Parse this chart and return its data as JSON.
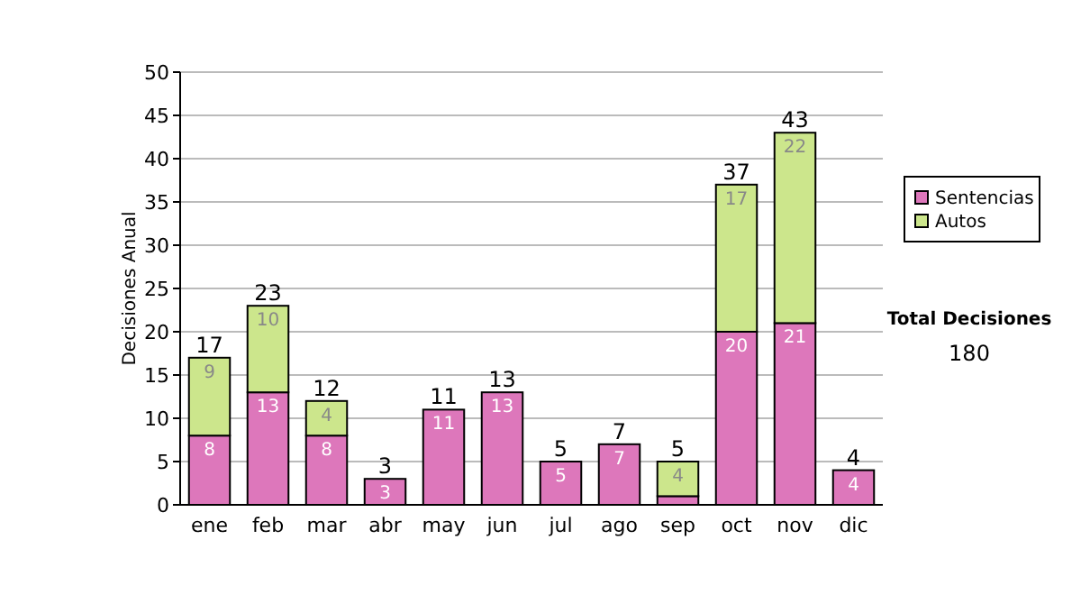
{
  "chart_data": {
    "type": "bar",
    "stacked": true,
    "ylabel": "Decisiones Anual",
    "categories": [
      "ene",
      "feb",
      "mar",
      "abr",
      "may",
      "jun",
      "jul",
      "ago",
      "sep",
      "oct",
      "nov",
      "dic"
    ],
    "series": [
      {
        "name": "Sentencias",
        "color": "#dd77bb",
        "values": [
          8,
          13,
          8,
          3,
          11,
          13,
          5,
          7,
          1,
          20,
          21,
          4
        ],
        "value_labels": [
          "8",
          "13",
          "8",
          "3",
          "11",
          "13",
          "5",
          "7",
          null,
          "20",
          "21",
          "4"
        ]
      },
      {
        "name": "Autos",
        "color": "#cce68c",
        "values": [
          9,
          10,
          4,
          0,
          0,
          0,
          0,
          0,
          4,
          17,
          22,
          0
        ],
        "value_labels": [
          "9",
          "10",
          "4",
          null,
          null,
          null,
          null,
          null,
          "4",
          "17",
          "22",
          null
        ]
      }
    ],
    "totals": [
      "17",
      "23",
      "12",
      "3",
      "11",
      "13",
      "5",
      "7",
      "5",
      "37",
      "43",
      "4"
    ],
    "ylim": [
      0,
      50
    ],
    "yticks": [
      0,
      5,
      10,
      15,
      20,
      25,
      30,
      35,
      40,
      45,
      50
    ],
    "grid": "y",
    "legend": "right",
    "annotations": [
      "Total Decisiones",
      "180"
    ]
  }
}
